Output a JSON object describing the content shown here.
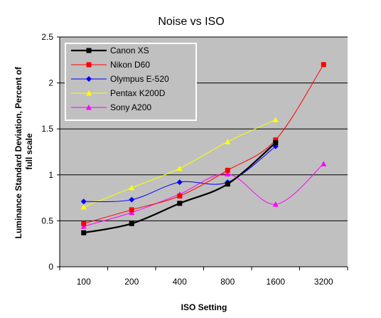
{
  "chart_data": {
    "type": "line",
    "title": "Noise vs ISO",
    "xlabel": "ISO Setting",
    "ylabel": "Luminance Standard Deviation, Percent of full scale",
    "ylabel_lines": [
      "Luminance Standard Deviation, Percent of",
      "full scale"
    ],
    "categories": [
      "100",
      "200",
      "400",
      "800",
      "1600",
      "3200"
    ],
    "ylim": [
      0,
      2.5
    ],
    "yticks": [
      "0",
      "0.5",
      "1",
      "1.5",
      "2",
      "2.5"
    ],
    "grid": "horizontal major gridlines",
    "legend_position": "top-left",
    "plot_background": "#c0c0c0",
    "series": [
      {
        "name": "Canon XS",
        "color": "#000000",
        "marker": "square",
        "values": [
          0.37,
          0.47,
          0.69,
          0.9,
          1.35,
          null
        ]
      },
      {
        "name": "Nikon D60",
        "color": "#ff0000",
        "marker": "square",
        "values": [
          0.47,
          0.62,
          0.77,
          1.05,
          1.38,
          2.2
        ]
      },
      {
        "name": "Olympus E-520",
        "color": "#0000ff",
        "marker": "diamond",
        "values": [
          0.71,
          0.73,
          0.92,
          0.92,
          1.31,
          null
        ]
      },
      {
        "name": "Pentax K200D",
        "color": "#ffff00",
        "marker": "triangle",
        "values": [
          0.65,
          0.86,
          1.07,
          1.36,
          1.6,
          null
        ]
      },
      {
        "name": "Sony A200",
        "color": "#ff00ff",
        "marker": "triangle",
        "values": [
          0.44,
          0.59,
          0.79,
          1.01,
          0.68,
          1.12
        ]
      }
    ]
  }
}
